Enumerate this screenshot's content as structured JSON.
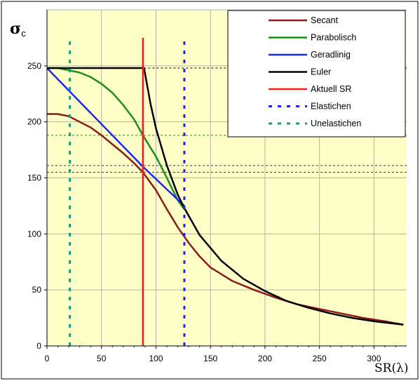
{
  "chart_data": {
    "type": "line",
    "ylabel_main": "σ",
    "ylabel_sub": "c",
    "xlabel": "SR(λ)",
    "xlim": [
      0,
      330
    ],
    "ylim": [
      0,
      300
    ],
    "x_ticks": [
      "0",
      "50",
      "100",
      "150",
      "200",
      "250",
      "300"
    ],
    "y_ticks": [
      "0",
      "50",
      "100",
      "150",
      "200",
      "250"
    ],
    "grid": true,
    "plot_background": "#ffffc8",
    "legend_position": "top-right",
    "series": [
      {
        "name": "Secant",
        "color": "#8b1a1a",
        "points": [
          [
            0,
            207
          ],
          [
            10,
            207
          ],
          [
            20,
            205
          ],
          [
            30,
            200
          ],
          [
            40,
            195
          ],
          [
            50,
            188
          ],
          [
            60,
            180
          ],
          [
            70,
            172
          ],
          [
            80,
            163
          ],
          [
            88,
            155
          ],
          [
            100,
            139
          ],
          [
            110,
            122
          ],
          [
            120,
            106
          ],
          [
            130,
            92
          ],
          [
            140,
            80
          ],
          [
            150,
            70
          ],
          [
            170,
            58
          ],
          [
            190,
            50
          ],
          [
            210,
            43
          ],
          [
            230,
            37
          ],
          [
            250,
            33
          ],
          [
            270,
            29
          ],
          [
            290,
            25
          ],
          [
            310,
            22
          ],
          [
            327,
            19
          ]
        ]
      },
      {
        "name": "Parabolisch",
        "color": "#1a8f1a",
        "points": [
          [
            0,
            248
          ],
          [
            10,
            248
          ],
          [
            20,
            246
          ],
          [
            30,
            244
          ],
          [
            40,
            240
          ],
          [
            50,
            234
          ],
          [
            60,
            226
          ],
          [
            70,
            215
          ],
          [
            80,
            202
          ],
          [
            88,
            188
          ],
          [
            100,
            169
          ],
          [
            110,
            150
          ],
          [
            120,
            130
          ],
          [
            126,
            122
          ]
        ]
      },
      {
        "name": "Geradlinig",
        "color": "#1c28f0",
        "points": [
          [
            0,
            248
          ],
          [
            88,
            160
          ],
          [
            126,
            125
          ]
        ]
      },
      {
        "name": "Euler",
        "color": "#000000",
        "points": [
          [
            0,
            248
          ],
          [
            89,
            248
          ],
          [
            95,
            216
          ],
          [
            100,
            194
          ],
          [
            110,
            161
          ],
          [
            120,
            135
          ],
          [
            126,
            123
          ],
          [
            140,
            99
          ],
          [
            160,
            76
          ],
          [
            180,
            60
          ],
          [
            200,
            49
          ],
          [
            220,
            40
          ],
          [
            240,
            34
          ],
          [
            260,
            29
          ],
          [
            280,
            25
          ],
          [
            300,
            22
          ],
          [
            327,
            19
          ]
        ]
      },
      {
        "name": "Aktuell SR",
        "color": "#ff1a1a",
        "points": [
          [
            88,
            0
          ],
          [
            88,
            275
          ]
        ]
      },
      {
        "name": "Elastichen",
        "color": "#1c28f0",
        "dashed": true,
        "points": [
          [
            126,
            0
          ],
          [
            126,
            272
          ]
        ]
      },
      {
        "name": "Unelastichen",
        "color": "#1a9a7a",
        "dashed": true,
        "points": [
          [
            21,
            0
          ],
          [
            21,
            272
          ]
        ]
      }
    ],
    "reference_lines": [
      {
        "color": "#000000",
        "y": 248,
        "x_from": 89,
        "x_to": 330
      },
      {
        "color": "#1a8f1a",
        "y": 188,
        "x_from": 0,
        "x_to": 330
      },
      {
        "color": "#1c28f0",
        "y": 161,
        "x_from": 0,
        "x_to": 330
      },
      {
        "color": "#8b1a1a",
        "y": 155,
        "x_from": 0,
        "x_to": 330
      }
    ]
  }
}
